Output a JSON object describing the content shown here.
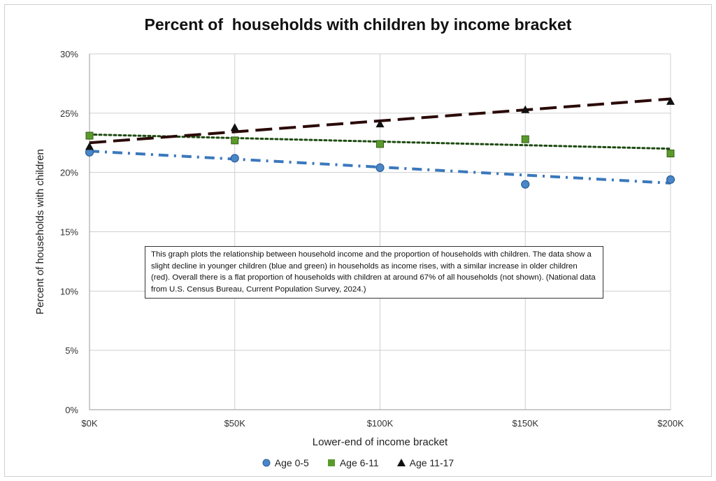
{
  "chart_data": {
    "type": "line",
    "title": "Percent of  households with children by income bracket",
    "xlabel": "Lower-end of income bracket",
    "ylabel": "Percent of households with children",
    "x": [
      0,
      50,
      100,
      150,
      200
    ],
    "x_tick_labels": [
      "$0K",
      "$50K",
      "$100K",
      "$150K",
      "$200K"
    ],
    "y_ticks": [
      0,
      5,
      10,
      15,
      20,
      25,
      30
    ],
    "y_tick_labels": [
      "0%",
      "5%",
      "10%",
      "15%",
      "20%",
      "25%",
      "30%"
    ],
    "ylim": [
      0,
      30
    ],
    "xlim": [
      0,
      200
    ],
    "grid": true,
    "legend_position": "bottom",
    "series": [
      {
        "name": "Age 0-5",
        "marker": "circle",
        "color": "#4a86c8",
        "values": [
          21.7,
          21.2,
          20.4,
          19.0,
          19.4
        ],
        "trendline": [
          21.8,
          19.1
        ],
        "trend_style": "dash-dot"
      },
      {
        "name": "Age 6-11",
        "marker": "square",
        "color": "#5a9a2a",
        "values": [
          23.1,
          22.7,
          22.4,
          22.8,
          21.6
        ],
        "trendline": [
          23.2,
          22.0
        ],
        "trend_style": "dotted"
      },
      {
        "name": "Age 11-17",
        "marker": "triangle",
        "color": "#111111",
        "values": [
          22.2,
          23.8,
          24.1,
          25.3,
          26.0
        ],
        "trendline": [
          22.5,
          26.2
        ],
        "trend_style": "dashed"
      }
    ],
    "annotation": "This graph plots the relationship between household income and the proportion of households with children. The data show a slight decline in younger children (blue and green) in households as income rises, with a similar increase in older children (red). Overall there is a flat proportion of households with children at around 67% of all households (not shown).  (National data from U.S. Census Bureau, Current Population Survey, 2024.)"
  }
}
